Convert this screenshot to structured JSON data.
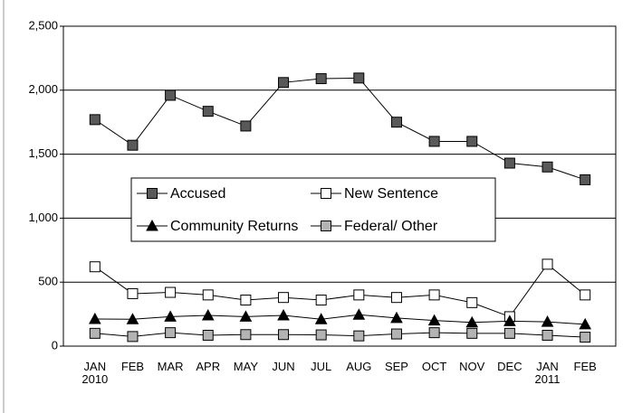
{
  "chart_data": {
    "type": "line",
    "categories": [
      "JAN 2010",
      "FEB",
      "MAR",
      "APR",
      "MAY",
      "JUN",
      "JUL",
      "AUG",
      "SEP",
      "OCT",
      "NOV",
      "DEC",
      "JAN 2011",
      "FEB"
    ],
    "series": [
      {
        "name": "Accused",
        "color": "#595959",
        "marker": "square",
        "values": [
          1770,
          1570,
          1960,
          1835,
          1720,
          2060,
          2090,
          2095,
          1750,
          1600,
          1600,
          1430,
          1400,
          1300
        ]
      },
      {
        "name": "New Sentence",
        "color": "#ffffff",
        "marker": "square",
        "values": [
          620,
          410,
          420,
          400,
          360,
          380,
          360,
          400,
          380,
          400,
          340,
          230,
          640,
          400
        ]
      },
      {
        "name": "Community Returns",
        "color": "#000000",
        "marker": "triangle",
        "values": [
          212,
          210,
          230,
          240,
          230,
          240,
          210,
          245,
          220,
          200,
          185,
          195,
          190,
          170
        ]
      },
      {
        "name": "Federal/ Other",
        "color": "#b3b3b3",
        "marker": "square",
        "values": [
          100,
          75,
          105,
          85,
          90,
          90,
          88,
          80,
          95,
          105,
          100,
          100,
          85,
          70
        ]
      }
    ],
    "ylim": [
      0,
      2500
    ],
    "yticks": [
      0,
      500,
      {
        "value": 1000,
        "label": "1,000"
      },
      {
        "value": 1500,
        "label": "1,500"
      },
      {
        "value": 2000,
        "label": "2,000"
      },
      {
        "value": 2500,
        "label": "2,500"
      }
    ],
    "grid": true,
    "legend": "center"
  }
}
